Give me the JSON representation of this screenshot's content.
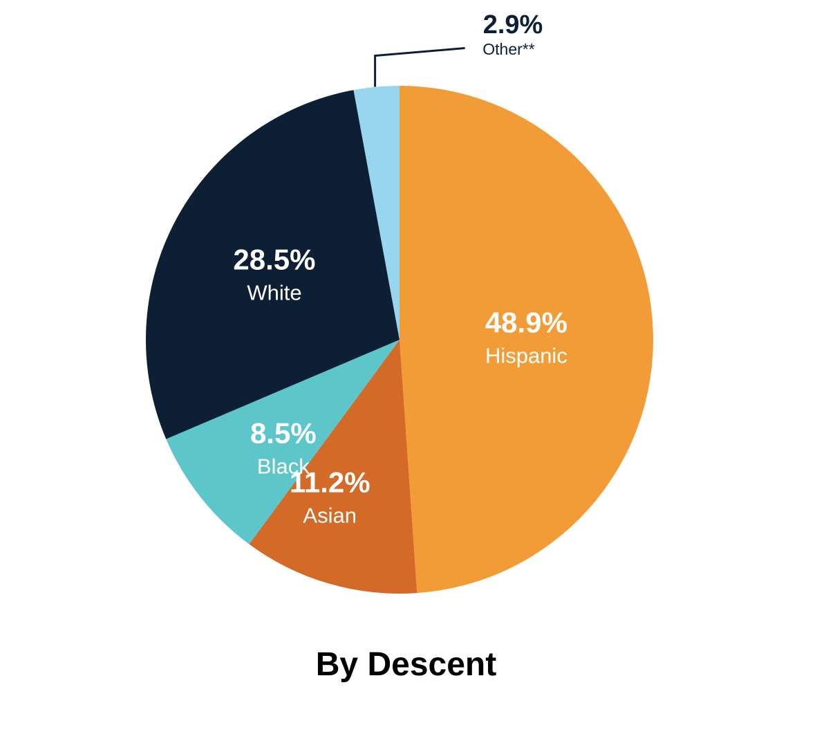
{
  "chart_data": {
    "type": "pie",
    "title": "By Descent",
    "categories": [
      "Hispanic",
      "Asian",
      "Black",
      "White",
      "Other**"
    ],
    "values": [
      48.9,
      11.2,
      8.5,
      28.5,
      2.9
    ],
    "value_labels": [
      "48.9%",
      "11.2%",
      "8.5%",
      "28.5%",
      "2.9%"
    ],
    "colors": [
      "#F29C38",
      "#D46A27",
      "#5DC6CB",
      "#0D1F35",
      "#98D5EE"
    ],
    "start": "12 o'clock",
    "direction": "clockwise",
    "callout_slice": "Other**"
  }
}
